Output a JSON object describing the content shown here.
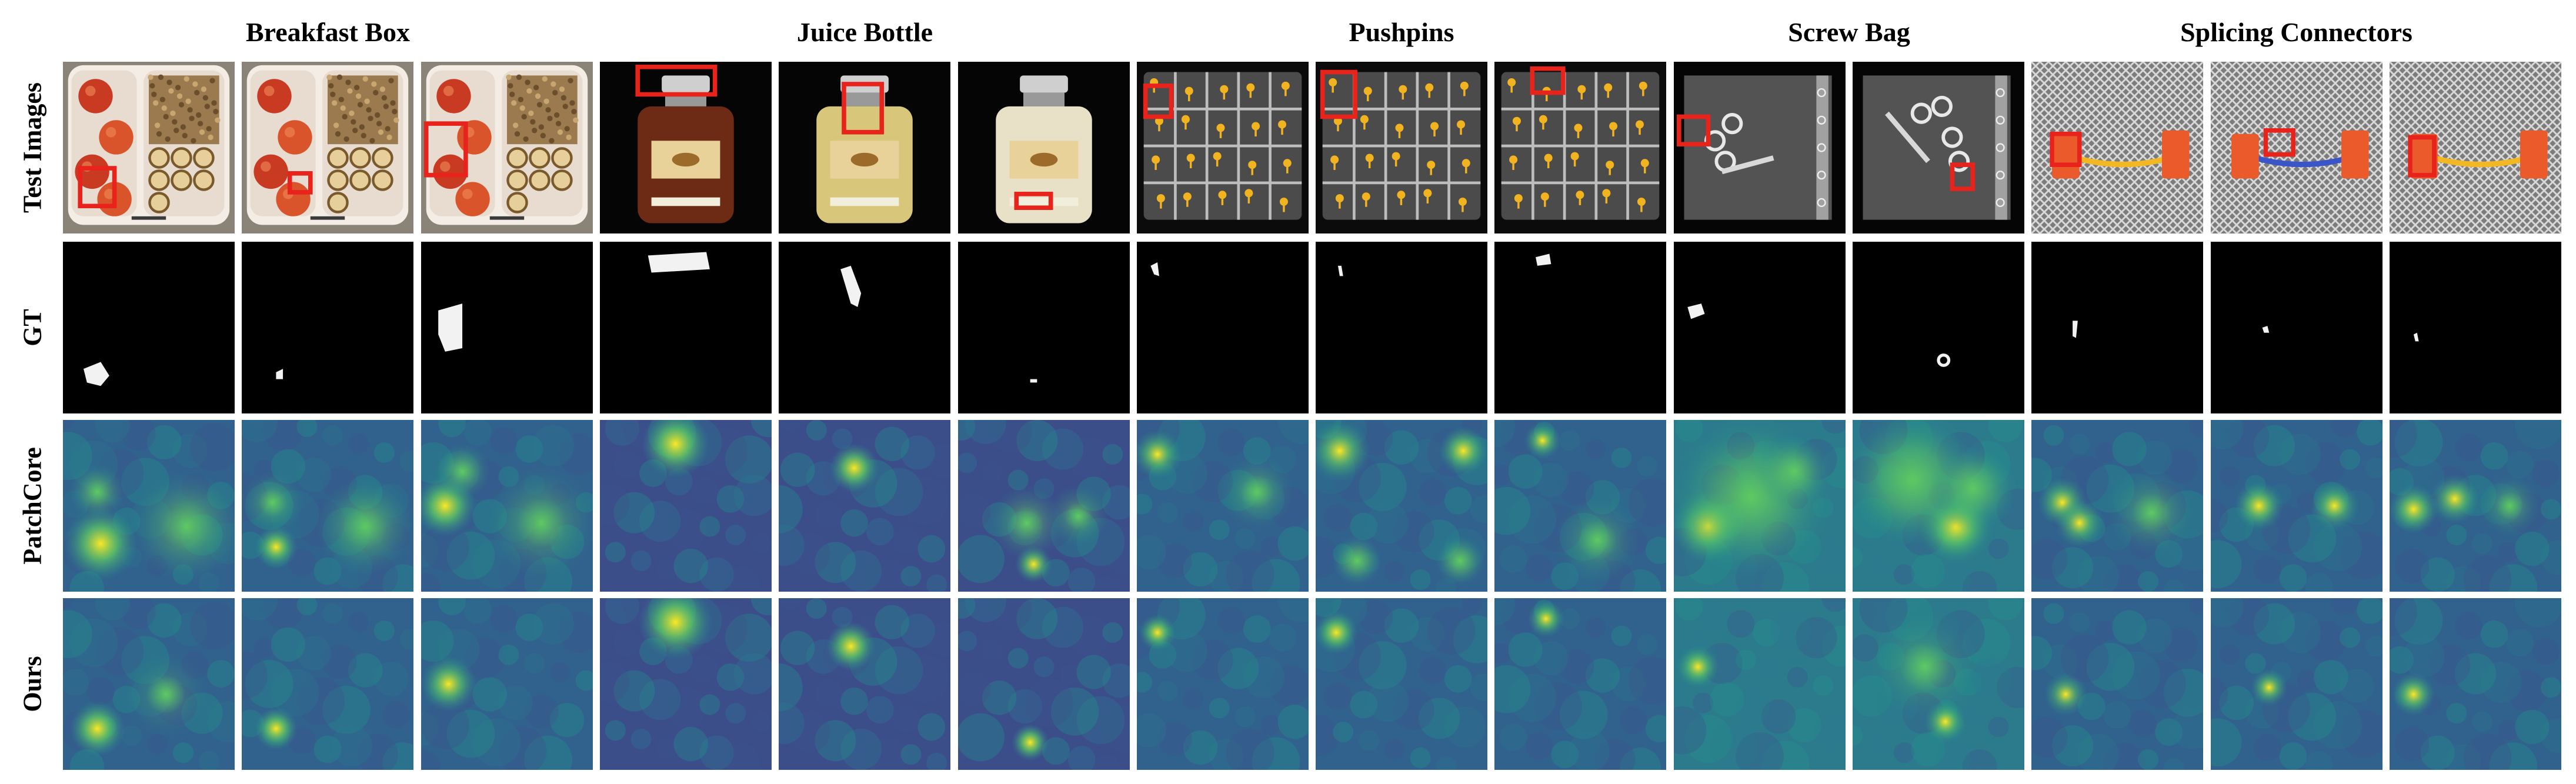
{
  "figure": {
    "categories": [
      {
        "title": "Breakfast Box",
        "key": "breakfast"
      },
      {
        "title": "Juice Bottle",
        "key": "juice"
      },
      {
        "title": "Pushpins",
        "key": "pushpins"
      },
      {
        "title": "Screw Bag",
        "key": "screw"
      },
      {
        "title": "Splicing Connectors",
        "key": "splicing"
      }
    ],
    "rows": [
      {
        "label": "Test Images",
        "kind": "image"
      },
      {
        "label": "GT",
        "kind": "gt"
      },
      {
        "label": "PatchCore",
        "kind": "heatmap"
      },
      {
        "label": "Ours",
        "kind": "heatmap"
      }
    ],
    "colors": {
      "viridis_low": "#440154",
      "viridis_mid": "#21918c",
      "viridis_high": "#fde725",
      "box_red": "#e8231c",
      "gt_background": "#000000",
      "gt_mask": "#f2f2f2"
    }
  }
}
